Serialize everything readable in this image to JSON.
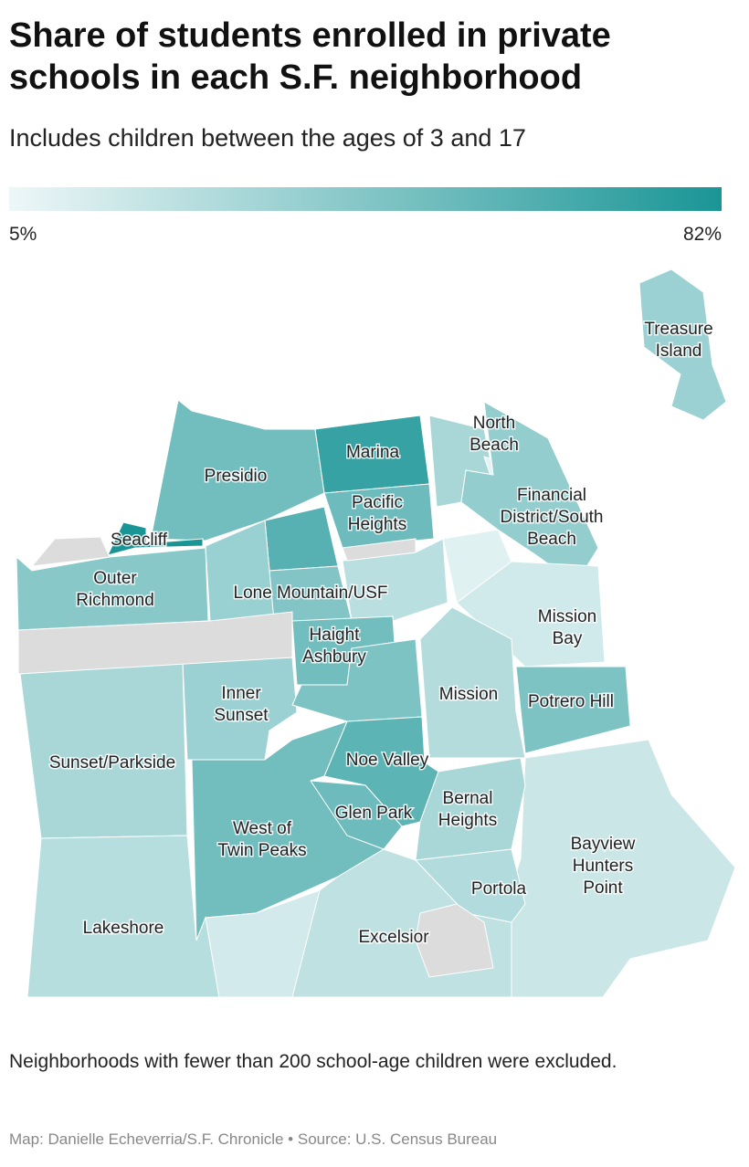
{
  "header": {
    "title": "Share of students enrolled in private schools in each S.F. neighborhood",
    "subtitle": "Includes children between the ages of 3 and 17"
  },
  "chart_data": {
    "type": "choropleth",
    "legend": {
      "ticks": [
        {
          "value": 5,
          "label": "5%"
        },
        {
          "value": 82,
          "label": "82%"
        }
      ],
      "colors": [
        "#eef7f8",
        "#1a9596"
      ]
    },
    "regions": [
      {
        "label": [
          "Presidio"
        ],
        "value": 50
      },
      {
        "label": [
          "Marina"
        ],
        "value": 72
      },
      {
        "label": [
          "Seacliff"
        ],
        "value": 82
      },
      {
        "label": [
          "Pacific",
          "Heights"
        ],
        "value": 52
      },
      {
        "label": null,
        "value": 60
      },
      {
        "label": [
          "North",
          "Beach"
        ],
        "value": 30
      },
      {
        "label": null,
        "value": 8
      },
      {
        "label": [
          "Financial",
          "District/South",
          "Beach"
        ],
        "value": 38
      },
      {
        "label": [
          "Outer",
          "Richmond"
        ],
        "value": 42
      },
      {
        "label": [
          "Lone Mountain/USF"
        ],
        "value": 36
      },
      {
        "label": null,
        "value": 44
      },
      {
        "label": null,
        "value": 24
      },
      {
        "label": null,
        "value": 10
      },
      {
        "label": [
          "Mission",
          "Bay"
        ],
        "value": 16
      },
      {
        "label": [
          "Haight",
          "Ashbury"
        ],
        "value": 50
      },
      {
        "label": [
          "Inner",
          "Sunset"
        ],
        "value": 35
      },
      {
        "label": [
          "Sunset/Parkside"
        ],
        "value": 30
      },
      {
        "label": [
          "Mission"
        ],
        "value": 26
      },
      {
        "label": [
          "Potrero Hill"
        ],
        "value": 46
      },
      {
        "label": [
          "Bayview",
          "Hunters",
          "Point"
        ],
        "value": 18
      },
      {
        "label": null,
        "value": 46
      },
      {
        "label": [
          "Noe Valley"
        ],
        "value": 58
      },
      {
        "label": [
          "Glen Park"
        ],
        "value": 52
      },
      {
        "label": [
          "West of",
          "Twin Peaks"
        ],
        "value": 50
      },
      {
        "label": [
          "Bernal",
          "Heights"
        ],
        "value": 30
      },
      {
        "label": [
          "Lakeshore"
        ],
        "value": 25
      },
      {
        "label": null,
        "value": 15
      },
      {
        "label": [
          "Excelsior"
        ],
        "value": 22
      },
      {
        "label": [
          "Portola"
        ],
        "value": 27
      },
      {
        "label": [
          "Treasure",
          "Island"
        ],
        "value": 35
      }
    ]
  },
  "footer": {
    "note": "Neighborhoods with fewer than 200 school-age children were excluded.",
    "credit": "Map: Danielle Echeverria/S.F. Chronicle • Source: U.S. Census Bureau"
  }
}
